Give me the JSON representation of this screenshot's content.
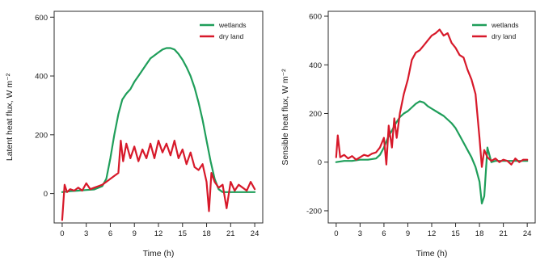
{
  "chart_data": [
    {
      "type": "line",
      "title": "",
      "xlabel": "Time (h)",
      "ylabel": "Latent heat flux, W m⁻²",
      "xlim": [
        -1,
        25
      ],
      "ylim": [
        -100,
        620
      ],
      "xticks": [
        0,
        3,
        6,
        9,
        12,
        15,
        18,
        21,
        24
      ],
      "yticks": [
        0,
        200,
        400,
        600
      ],
      "grid": false,
      "legend_position": "top-right",
      "series": [
        {
          "name": "wetlands",
          "color": "#1f9e5a",
          "x": [
            0,
            1,
            2,
            3,
            4,
            5,
            5.5,
            6,
            6.5,
            7,
            7.5,
            8,
            8.5,
            9,
            9.5,
            10,
            10.5,
            11,
            11.5,
            12,
            12.5,
            13,
            13.5,
            14,
            14.5,
            15,
            15.5,
            16,
            16.5,
            17,
            17.5,
            18,
            18.5,
            19,
            19.5,
            20,
            21,
            22,
            23,
            24
          ],
          "y": [
            5,
            8,
            10,
            12,
            14,
            25,
            50,
            120,
            200,
            270,
            320,
            340,
            355,
            380,
            400,
            420,
            440,
            460,
            470,
            480,
            490,
            495,
            495,
            490,
            475,
            455,
            430,
            400,
            360,
            310,
            250,
            180,
            110,
            50,
            15,
            5,
            5,
            5,
            5,
            5
          ]
        },
        {
          "name": "dry land",
          "color": "#d7192a",
          "x": [
            0,
            0.3,
            0.6,
            1,
            1.5,
            2,
            2.5,
            3,
            3.5,
            4,
            4.5,
            5,
            5.5,
            6,
            6.5,
            7,
            7.3,
            7.6,
            8,
            8.5,
            9,
            9.5,
            10,
            10.5,
            11,
            11.5,
            12,
            12.5,
            13,
            13.5,
            14,
            14.5,
            15,
            15.5,
            16,
            16.5,
            17,
            17.5,
            18,
            18.3,
            18.6,
            19,
            19.5,
            20,
            20.5,
            21,
            21.5,
            22,
            22.5,
            23,
            23.5,
            24
          ],
          "y": [
            -90,
            30,
            5,
            15,
            10,
            20,
            10,
            35,
            15,
            20,
            25,
            30,
            40,
            50,
            60,
            70,
            180,
            110,
            170,
            120,
            160,
            110,
            150,
            120,
            170,
            120,
            180,
            140,
            170,
            130,
            180,
            120,
            150,
            100,
            140,
            90,
            80,
            100,
            40,
            -60,
            70,
            40,
            20,
            30,
            -50,
            40,
            10,
            30,
            20,
            10,
            40,
            15
          ]
        }
      ]
    },
    {
      "type": "line",
      "title": "",
      "xlabel": "Time (h)",
      "ylabel": "Sensible heat flux, W m⁻²",
      "xlim": [
        -1,
        25
      ],
      "ylim": [
        -250,
        620
      ],
      "xticks": [
        0,
        3,
        6,
        9,
        12,
        15,
        18,
        21,
        24
      ],
      "yticks": [
        -200,
        0,
        200,
        400,
        600
      ],
      "grid": false,
      "legend_position": "top-right",
      "series": [
        {
          "name": "wetlands",
          "color": "#1f9e5a",
          "x": [
            0,
            1,
            2,
            3,
            4,
            5,
            5.5,
            6,
            6.5,
            7,
            7.5,
            8,
            8.5,
            9,
            9.5,
            10,
            10.5,
            11,
            11.5,
            12,
            12.5,
            13,
            13.5,
            14,
            14.5,
            15,
            15.5,
            16,
            16.5,
            17,
            17.5,
            18,
            18.3,
            18.6,
            19,
            19.5,
            20,
            21,
            22,
            23,
            24
          ],
          "y": [
            0,
            5,
            5,
            10,
            10,
            15,
            30,
            60,
            100,
            130,
            160,
            185,
            200,
            210,
            225,
            240,
            250,
            245,
            230,
            220,
            210,
            200,
            190,
            175,
            160,
            140,
            110,
            80,
            50,
            20,
            -20,
            -80,
            -170,
            -140,
            60,
            0,
            5,
            5,
            5,
            5,
            5
          ]
        },
        {
          "name": "dry land",
          "color": "#d7192a",
          "x": [
            0,
            0.2,
            0.5,
            1,
            1.5,
            2,
            2.5,
            3,
            3.5,
            4,
            4.5,
            5,
            5.5,
            6,
            6.3,
            6.6,
            7,
            7.3,
            7.6,
            8,
            8.5,
            9,
            9.5,
            10,
            10.5,
            11,
            11.5,
            12,
            12.5,
            13,
            13.5,
            14,
            14.5,
            15,
            15.5,
            16,
            16.5,
            17,
            17.5,
            18,
            18.3,
            18.6,
            19,
            19.5,
            20,
            20.5,
            21,
            21.5,
            22,
            22.5,
            23,
            23.5,
            24
          ],
          "y": [
            20,
            110,
            20,
            30,
            15,
            25,
            10,
            20,
            30,
            25,
            35,
            40,
            60,
            100,
            -10,
            150,
            60,
            180,
            100,
            200,
            280,
            340,
            420,
            450,
            460,
            480,
            500,
            520,
            530,
            545,
            520,
            530,
            490,
            470,
            440,
            430,
            380,
            340,
            280,
            100,
            -20,
            50,
            20,
            5,
            15,
            0,
            10,
            5,
            -10,
            15,
            0,
            10,
            10
          ]
        }
      ]
    }
  ]
}
